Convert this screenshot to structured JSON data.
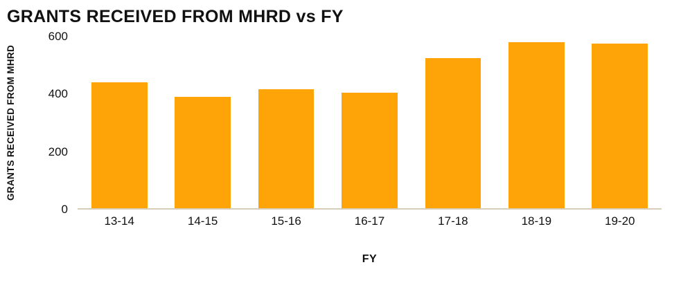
{
  "colors": {
    "bar": "#FFA408",
    "axis_line": "#d8cdb8",
    "text": "#111111"
  },
  "chart_data": {
    "type": "bar",
    "title": "GRANTS RECEIVED FROM MHRD vs FY",
    "xlabel": "FY",
    "ylabel": "GRANTS RECEIVED FROM MHRD",
    "categories": [
      "13-14",
      "14-15",
      "15-16",
      "16-17",
      "17-18",
      "18-19",
      "19-20"
    ],
    "values": [
      440,
      390,
      415,
      405,
      525,
      580,
      575
    ],
    "ylim": [
      0,
      600
    ],
    "yticks": [
      0,
      200,
      400,
      600
    ],
    "grid": false,
    "legend": false,
    "bar_color": "#FFA408"
  }
}
